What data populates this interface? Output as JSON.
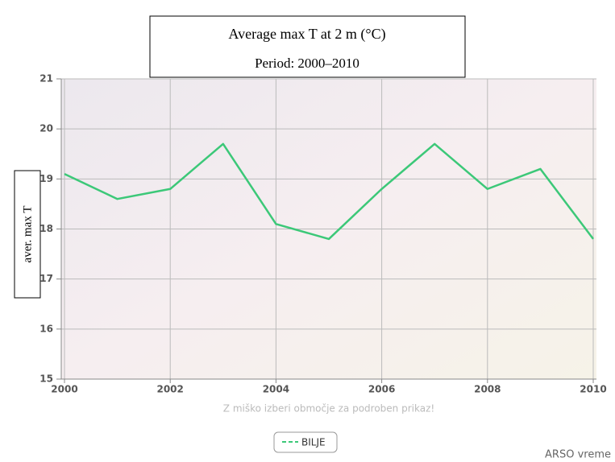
{
  "chart_data": {
    "type": "line",
    "title": "Average max T at 2 m (°C)",
    "subtitle": "Period: 2000–2010",
    "y_label": "aver. max T",
    "note": "Z miško izberi območje za podroben prikaz!",
    "source": "ARSO vreme",
    "x": [
      2000,
      2001,
      2002,
      2003,
      2004,
      2005,
      2006,
      2007,
      2008,
      2009,
      2010
    ],
    "series": [
      {
        "name": "BILJE",
        "color": "#3cc878",
        "values": [
          19.1,
          18.6,
          18.8,
          19.7,
          18.1,
          17.8,
          18.8,
          19.7,
          18.8,
          19.2,
          17.8
        ]
      }
    ],
    "xlim": [
      2000,
      2010
    ],
    "xticks": [
      2000,
      2002,
      2004,
      2006,
      2008,
      2010
    ],
    "ylim": [
      15,
      21
    ],
    "yticks": [
      15,
      16,
      17,
      18,
      19,
      20,
      21
    ],
    "grid": true
  }
}
